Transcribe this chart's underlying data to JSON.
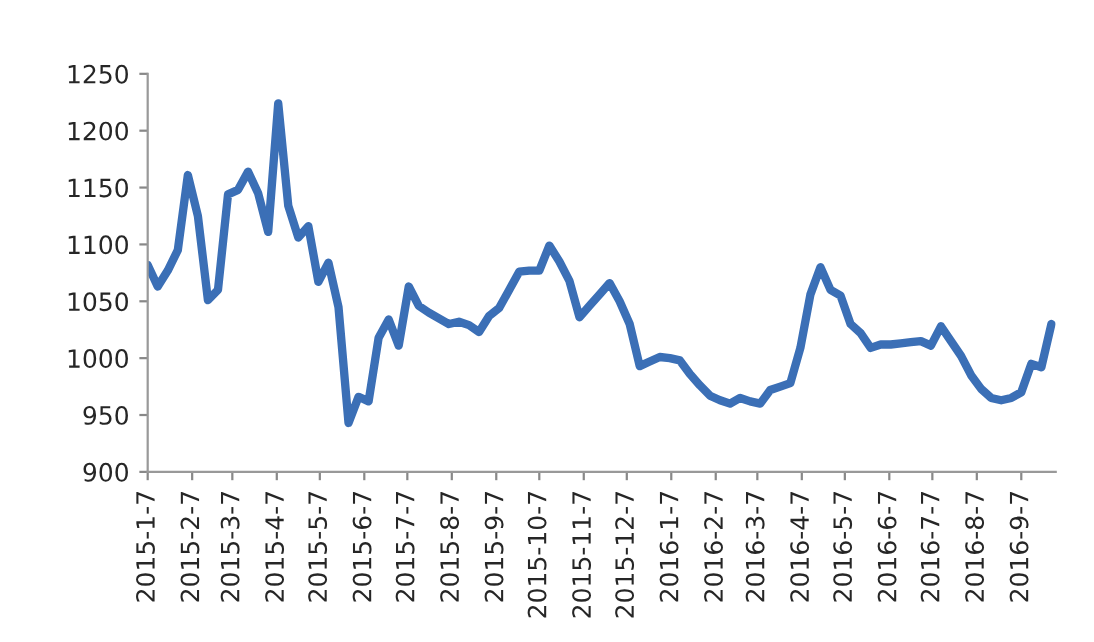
{
  "chart_data": {
    "type": "line",
    "x": [
      "2015-01-07",
      "2015-01-14",
      "2015-01-21",
      "2015-01-28",
      "2015-02-04",
      "2015-02-11",
      "2015-02-18",
      "2015-02-25",
      "2015-03-04",
      "2015-03-11",
      "2015-03-18",
      "2015-03-25",
      "2015-04-01",
      "2015-04-08",
      "2015-04-15",
      "2015-04-22",
      "2015-04-29",
      "2015-05-06",
      "2015-05-13",
      "2015-05-20",
      "2015-05-27",
      "2015-06-03",
      "2015-06-10",
      "2015-06-17",
      "2015-06-24",
      "2015-07-01",
      "2015-07-08",
      "2015-07-15",
      "2015-07-22",
      "2015-07-29",
      "2015-08-05",
      "2015-08-12",
      "2015-08-19",
      "2015-08-26",
      "2015-09-02",
      "2015-09-09",
      "2015-09-16",
      "2015-09-23",
      "2015-09-30",
      "2015-10-07",
      "2015-10-14",
      "2015-10-21",
      "2015-10-28",
      "2015-11-04",
      "2015-11-11",
      "2015-11-18",
      "2015-11-25",
      "2015-12-02",
      "2015-12-09",
      "2015-12-16",
      "2015-12-23",
      "2015-12-30",
      "2016-01-06",
      "2016-01-13",
      "2016-01-20",
      "2016-01-27",
      "2016-02-03",
      "2016-02-10",
      "2016-02-17",
      "2016-02-24",
      "2016-03-02",
      "2016-03-09",
      "2016-03-16",
      "2016-03-23",
      "2016-03-30",
      "2016-04-06",
      "2016-04-13",
      "2016-04-20",
      "2016-04-27",
      "2016-05-04",
      "2016-05-11",
      "2016-05-18",
      "2016-05-25",
      "2016-06-01",
      "2016-06-08",
      "2016-06-15",
      "2016-06-22",
      "2016-06-29",
      "2016-07-06",
      "2016-07-13",
      "2016-07-20",
      "2016-07-27",
      "2016-08-03",
      "2016-08-10",
      "2016-08-17",
      "2016-08-24",
      "2016-08-31",
      "2016-09-07",
      "2016-09-14",
      "2016-09-21",
      "2016-09-28"
    ],
    "series": [
      {
        "color": "#3b6fb6",
        "values": [
          1082,
          1063,
          1077,
          1095,
          1161,
          1125,
          1051,
          1060,
          1144,
          1148,
          1164,
          1145,
          1111,
          1224,
          1134,
          1106,
          1116,
          1067,
          1084,
          1045,
          943,
          966,
          962,
          1018,
          1034,
          1011,
          1063,
          1046,
          1040,
          1035,
          1030,
          1032,
          1029,
          1023,
          1037,
          1044,
          1060,
          1076,
          1077,
          1077,
          1099,
          1085,
          1068,
          1036,
          1046,
          1056,
          1066,
          1050,
          1030,
          993,
          997,
          1001,
          1000,
          998,
          986,
          976,
          967,
          963,
          960,
          965,
          962,
          960,
          972,
          975,
          978,
          1009,
          1056,
          1080,
          1060,
          1055,
          1030,
          1022,
          1009,
          1012,
          1012,
          1013,
          1014,
          1015,
          1011,
          1028,
          1015,
          1002,
          985,
          973,
          965,
          963,
          965,
          970,
          995,
          992,
          1030
        ]
      }
    ],
    "xlim": [
      "2015-01-07",
      "2016-10-01"
    ],
    "xticks": [
      {
        "value": "2015-01-07",
        "label": "2015-1-7"
      },
      {
        "value": "2015-02-07",
        "label": "2015-2-7"
      },
      {
        "value": "2015-03-07",
        "label": "2015-3-7"
      },
      {
        "value": "2015-04-07",
        "label": "2015-4-7"
      },
      {
        "value": "2015-05-07",
        "label": "2015-5-7"
      },
      {
        "value": "2015-06-07",
        "label": "2015-6-7"
      },
      {
        "value": "2015-07-07",
        "label": "2015-7-7"
      },
      {
        "value": "2015-08-07",
        "label": "2015-8-7"
      },
      {
        "value": "2015-09-07",
        "label": "2015-9-7"
      },
      {
        "value": "2015-10-07",
        "label": "2015-10-7"
      },
      {
        "value": "2015-11-07",
        "label": "2015-11-7"
      },
      {
        "value": "2015-12-07",
        "label": "2015-12-7"
      },
      {
        "value": "2016-01-07",
        "label": "2016-1-7"
      },
      {
        "value": "2016-02-07",
        "label": "2016-2-7"
      },
      {
        "value": "2016-03-07",
        "label": "2016-3-7"
      },
      {
        "value": "2016-04-07",
        "label": "2016-4-7"
      },
      {
        "value": "2016-05-07",
        "label": "2016-5-7"
      },
      {
        "value": "2016-06-07",
        "label": "2016-6-7"
      },
      {
        "value": "2016-07-07",
        "label": "2016-7-7"
      },
      {
        "value": "2016-08-07",
        "label": "2016-8-7"
      },
      {
        "value": "2016-09-07",
        "label": "2016-9-7"
      }
    ],
    "ylim": [
      900,
      1250
    ],
    "yticks": [
      900,
      950,
      1000,
      1050,
      1100,
      1150,
      1200,
      1250
    ],
    "grid": false,
    "legend": false,
    "marker": "none",
    "line_style": "solid"
  }
}
